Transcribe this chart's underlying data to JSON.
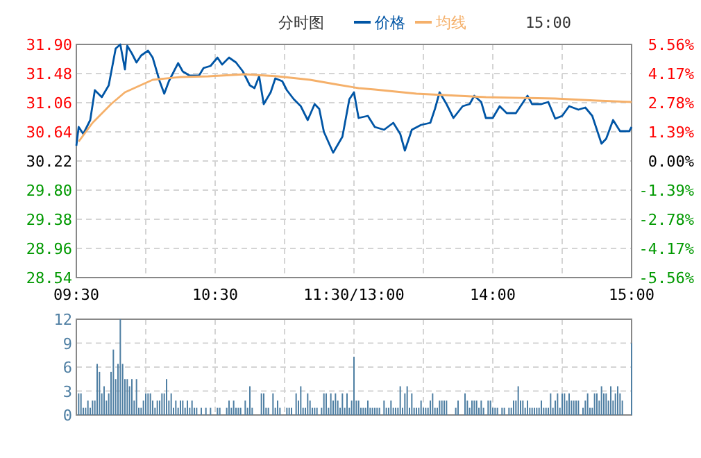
{
  "chart_data": [
    {
      "type": "line",
      "title": "分时图",
      "annotations": [
        "15:00"
      ],
      "legend": "top",
      "grid": true,
      "categories": [
        "09:30",
        null,
        null,
        null,
        null,
        null,
        null,
        null,
        null,
        null,
        null,
        null,
        null,
        null,
        null,
        null,
        null,
        null,
        null,
        null,
        null,
        null,
        null,
        null,
        null,
        null,
        null,
        null,
        null,
        null,
        null,
        null,
        null,
        null,
        null,
        null,
        null,
        null,
        null,
        null,
        null,
        null,
        null,
        null,
        null,
        null,
        null,
        null,
        null,
        null,
        null,
        null,
        null,
        null,
        null,
        null,
        null,
        null,
        null,
        null,
        "10:30",
        null,
        null,
        null,
        null,
        null,
        null,
        null,
        null,
        null,
        null,
        null,
        null,
        null,
        null,
        null,
        null,
        null,
        null,
        null,
        null,
        null,
        null,
        null,
        null,
        null,
        null,
        null,
        null,
        null,
        null,
        null,
        null,
        null,
        null,
        null,
        null,
        null,
        null,
        null,
        null,
        null,
        null,
        null,
        null,
        null,
        null,
        null,
        null,
        null,
        null,
        null,
        null,
        null,
        null,
        null,
        null,
        null,
        null,
        null,
        "11:30/13:00",
        null,
        null,
        null,
        null,
        null,
        null,
        null,
        null,
        null,
        null,
        null,
        null,
        null,
        null,
        null,
        null,
        null,
        null,
        null,
        null,
        null,
        null,
        null,
        null,
        null,
        null,
        null,
        null,
        null,
        null,
        null,
        null,
        null,
        null,
        null,
        null,
        null,
        null,
        null,
        null,
        null,
        null,
        null,
        null,
        null,
        null,
        null,
        null,
        null,
        null,
        null,
        null,
        null,
        null,
        null,
        null,
        null,
        null,
        null,
        "14:00",
        null,
        null,
        null,
        null,
        null,
        null,
        null,
        null,
        null,
        null,
        null,
        null,
        null,
        null,
        null,
        null,
        null,
        null,
        null,
        null,
        null,
        null,
        null,
        null,
        null,
        null,
        null,
        null,
        null,
        null,
        null,
        null,
        null,
        null,
        null,
        null,
        null,
        null,
        null,
        null,
        null,
        null,
        null,
        null,
        null,
        null,
        null,
        null,
        null,
        null,
        null,
        null,
        null,
        null,
        null,
        null,
        null,
        null,
        null,
        "15:00"
      ],
      "ylim": [
        28.54,
        31.9
      ],
      "yticks": [
        {
          "value": 28.54,
          "label": "28.54"
        },
        {
          "value": 28.96,
          "label": "28.96"
        },
        {
          "value": 29.38,
          "label": "29.38"
        },
        {
          "value": 29.8,
          "label": "29.80"
        },
        {
          "value": 30.22,
          "label": "30.22"
        },
        {
          "value": 30.64,
          "label": "30.64"
        },
        {
          "value": 31.06,
          "label": "31.06"
        },
        {
          "value": 31.48,
          "label": "31.48"
        },
        {
          "value": 31.9,
          "label": "31.90"
        }
      ],
      "y2lim": [
        -5.56,
        5.56
      ],
      "y2ticks": [
        {
          "value": -5.56,
          "label": "-5.56%"
        },
        {
          "value": -4.17,
          "label": "-4.17%"
        },
        {
          "value": -2.78,
          "label": "-2.78%"
        },
        {
          "value": -1.39,
          "label": "-1.39%"
        },
        {
          "value": 0,
          "label": "0.00%"
        },
        {
          "value": 1.39,
          "label": "1.39%"
        },
        {
          "value": 2.78,
          "label": "2.78%"
        },
        {
          "value": 4.17,
          "label": "4.17%"
        },
        {
          "value": 5.56,
          "label": "5.56%"
        }
      ],
      "series": [
        {
          "name": "价格",
          "color": "#0055a5",
          "values": [
            30.44,
            30.71,
            null,
            30.61,
            null,
            null,
            30.81,
            null,
            31.24,
            null,
            null,
            31.14,
            null,
            null,
            31.31,
            null,
            null,
            31.84,
            null,
            31.9,
            null,
            31.54,
            31.88,
            null,
            31.77,
            null,
            31.64,
            null,
            31.74,
            null,
            null,
            31.81,
            null,
            31.71,
            null,
            null,
            31.37,
            null,
            31.19,
            null,
            31.37,
            null,
            null,
            null,
            31.63,
            null,
            31.51,
            null,
            null,
            31.45,
            null,
            null,
            null,
            31.45,
            null,
            31.56,
            null,
            null,
            31.59,
            null,
            null,
            31.71,
            null,
            31.61,
            null,
            null,
            31.71,
            null,
            null,
            31.64,
            null,
            null,
            31.51,
            null,
            null,
            31.31,
            null,
            31.27,
            null,
            31.44,
            null,
            31.04,
            null,
            null,
            31.21,
            null,
            31.41,
            null,
            null,
            31.37,
            null,
            31.24,
            null,
            null,
            31.11,
            null,
            null,
            31.01,
            null,
            null,
            30.81,
            null,
            null,
            31.04,
            null,
            30.97,
            null,
            30.64,
            null,
            null,
            null,
            30.34,
            null,
            null,
            null,
            30.57,
            null,
            null,
            31.11,
            null,
            31.21,
            null,
            30.84,
            null,
            null,
            null,
            30.87,
            null,
            null,
            30.71,
            null,
            null,
            null,
            30.67,
            null,
            null,
            null,
            30.77,
            null,
            null,
            30.61,
            null,
            30.37,
            null,
            null,
            30.67,
            null,
            null,
            null,
            30.74,
            null,
            null,
            null,
            30.77,
            null,
            30.97,
            null,
            31.21,
            null,
            null,
            31.04,
            null,
            null,
            30.84,
            null,
            null,
            null,
            31.01,
            null,
            null,
            31.04,
            null,
            31.16,
            null,
            null,
            31.07,
            null,
            30.84,
            null,
            null,
            30.84,
            null,
            null,
            31.01,
            null,
            null,
            30.91,
            null,
            null,
            null,
            30.91,
            null,
            null,
            null,
            null,
            31.16,
            null,
            31.04,
            null,
            null,
            null,
            31.04,
            null,
            null,
            31.07,
            null,
            null,
            30.83,
            null,
            null,
            30.87,
            null,
            null,
            31.01,
            null,
            null,
            null,
            30.96,
            null,
            null,
            30.99,
            null,
            null,
            30.87,
            null,
            null,
            null,
            30.47,
            null,
            30.54,
            null,
            null,
            30.81,
            null,
            null,
            30.65,
            null,
            null,
            null,
            30.65,
            30.71
          ]
        },
        {
          "name": "均线",
          "color": "#f5b06a",
          "values": [
            null,
            30.5,
            null,
            null,
            null,
            null,
            null,
            30.77,
            null,
            null,
            null,
            null,
            null,
            null,
            null,
            31.04,
            null,
            null,
            null,
            null,
            null,
            31.21,
            null,
            null,
            null,
            null,
            null,
            null,
            null,
            null,
            null,
            null,
            null,
            31.39,
            null,
            null,
            null,
            null,
            null,
            null,
            null,
            null,
            null,
            null,
            null,
            31.43,
            null,
            null,
            null,
            null,
            null,
            null,
            null,
            null,
            null,
            null,
            null,
            31.44,
            null,
            null,
            null,
            null,
            null,
            null,
            null,
            null,
            null,
            null,
            null,
            null,
            null,
            null,
            null,
            31.47,
            null,
            null,
            null,
            null,
            null,
            null,
            null,
            null,
            null,
            null,
            null,
            null,
            null,
            31.44,
            null,
            null,
            null,
            null,
            null,
            null,
            null,
            null,
            null,
            null,
            null,
            null,
            null,
            31.39,
            null,
            null,
            null,
            null,
            null,
            null,
            null,
            null,
            null,
            null,
            null,
            31.32,
            null,
            null,
            null,
            null,
            null,
            null,
            null,
            null,
            31.27,
            null,
            null,
            null,
            null,
            null,
            null,
            31.25,
            null,
            null,
            null,
            null,
            null,
            null,
            null,
            null,
            null,
            null,
            null,
            null,
            null,
            null,
            null,
            null,
            null,
            31.19,
            null,
            null,
            null,
            null,
            null,
            null,
            null,
            null,
            null,
            null,
            null,
            null,
            null,
            null,
            null,
            null,
            null,
            null,
            null,
            null,
            null,
            null,
            null,
            null,
            null,
            null,
            null,
            null,
            null,
            31.14,
            null,
            null,
            null,
            null,
            null,
            null,
            null,
            null,
            null,
            null,
            null,
            null,
            null,
            null,
            null,
            null,
            null,
            null,
            null,
            null,
            null,
            null,
            null,
            null,
            null,
            null,
            null,
            null,
            null,
            31.12,
            null,
            null,
            null,
            null,
            null,
            null,
            null,
            null,
            null,
            null,
            null,
            null,
            null,
            null,
            null,
            null,
            null,
            31.09,
            null,
            null,
            null,
            null,
            null,
            null,
            null,
            null,
            null,
            null,
            null,
            null,
            null,
            null,
            31.07
          ]
        }
      ]
    },
    {
      "type": "bar",
      "grid": true,
      "tick_labels": "y",
      "color": "#4f7fa3",
      "categories": [
        null,
        null,
        null,
        null,
        null,
        null,
        null,
        null,
        null,
        null,
        null,
        null,
        null,
        null,
        null,
        null,
        null,
        null,
        null,
        null,
        null,
        null,
        null,
        null,
        null,
        null,
        null,
        null,
        null,
        null,
        null,
        null,
        null,
        null,
        null,
        null,
        null,
        null,
        null,
        null,
        null,
        null,
        null,
        null,
        null,
        null,
        null,
        null,
        null,
        null,
        null,
        null,
        null,
        null,
        null,
        null,
        null,
        null,
        null,
        null,
        null,
        null,
        null,
        null,
        null,
        null,
        null,
        null,
        null,
        null,
        null,
        null,
        null,
        null,
        null,
        null,
        null,
        null,
        null,
        null,
        null,
        null,
        null,
        null,
        null,
        null,
        null,
        null,
        null,
        null,
        null,
        null,
        null,
        null,
        null,
        null,
        null,
        null,
        null,
        null,
        null,
        null,
        null,
        null,
        null,
        null,
        null,
        null,
        null,
        null,
        null,
        null,
        null,
        null,
        null,
        null,
        null,
        null,
        null,
        null,
        null,
        null,
        null,
        null,
        null,
        null,
        null,
        null,
        null,
        null,
        null,
        null,
        null,
        null,
        null,
        null,
        null,
        null,
        null,
        null,
        null,
        null,
        null,
        null,
        null,
        null,
        null,
        null,
        null,
        null,
        null,
        null,
        null,
        null,
        null,
        null,
        null,
        null,
        null,
        null,
        null,
        null,
        null,
        null,
        null,
        null,
        null,
        null,
        null,
        null,
        null,
        null,
        null,
        null,
        null,
        null,
        null,
        null,
        null,
        null,
        null,
        null,
        null,
        null,
        null,
        null,
        null,
        null,
        null,
        null,
        null,
        null,
        null,
        null,
        null,
        null,
        null,
        null,
        null,
        null,
        null,
        null,
        null,
        null,
        null,
        null,
        null,
        null,
        null,
        null,
        null,
        null,
        null,
        null,
        null,
        null,
        null,
        null,
        null,
        null,
        null,
        null,
        null,
        null,
        null,
        null,
        null,
        null,
        null,
        null,
        null,
        null,
        null,
        null,
        null,
        null,
        null,
        null,
        null,
        null,
        null
      ],
      "ylim": [
        0,
        12
      ],
      "yticks": [
        0,
        3,
        6,
        9,
        12
      ],
      "values": [
        null,
        2.7,
        2.7,
        0.9,
        0.9,
        1.8,
        0.9,
        1.8,
        1.8,
        6.4,
        5.4,
        2.7,
        3.6,
        1.8,
        2.7,
        5.4,
        8.2,
        4.5,
        6.4,
        12,
        6.4,
        4.5,
        4.5,
        3.6,
        4.5,
        1.8,
        4.5,
        0.9,
        0.9,
        1.8,
        2.7,
        2.7,
        2.7,
        1.8,
        0.9,
        1.8,
        1.8,
        2.7,
        2.7,
        4.5,
        1.8,
        2.7,
        0.9,
        1.8,
        0.9,
        1.8,
        1.8,
        0.9,
        1.8,
        0.9,
        1.8,
        0.9,
        0.9,
        0,
        0.9,
        0,
        0.9,
        0,
        0.9,
        0,
        0,
        0.9,
        0.9,
        0,
        0,
        0.9,
        1.8,
        0.9,
        1.8,
        0.9,
        0.9,
        0.9,
        0,
        1.8,
        0.9,
        3.6,
        0.9,
        0,
        0,
        0,
        2.7,
        2.7,
        0.9,
        0.9,
        0,
        2.7,
        0.9,
        1.8,
        0.9,
        0,
        0,
        0.9,
        0.9,
        0.9,
        0,
        2.7,
        1.8,
        3.6,
        0.9,
        0.9,
        2.7,
        1.8,
        0.9,
        0.9,
        0.9,
        0,
        0.9,
        2.7,
        2.7,
        0.9,
        2.7,
        1.8,
        2.7,
        1.8,
        0.9,
        2.7,
        0.9,
        2.7,
        0.9,
        1.8,
        7.3,
        1.8,
        1.8,
        0.9,
        0.9,
        0.9,
        1.8,
        0.9,
        0.9,
        0.9,
        0.9,
        0.9,
        0,
        1.8,
        0.9,
        0.9,
        1.8,
        0.9,
        0.9,
        0.9,
        3.6,
        0.9,
        2.7,
        3.6,
        0.9,
        2.7,
        0.9,
        0.9,
        0.9,
        1.8,
        0.9,
        0.9,
        0.9,
        1.8,
        2.7,
        0.9,
        0.9,
        1.8,
        1.8,
        1.8,
        1.8,
        0,
        0,
        0,
        0.9,
        1.8,
        0,
        0,
        2.7,
        1.8,
        0.9,
        1.8,
        1.8,
        1.8,
        0.9,
        1.8,
        0.9,
        0,
        1.8,
        1.8,
        0.9,
        0.9,
        0.9,
        0,
        0.9,
        0.9,
        0,
        0.9,
        0.9,
        1.8,
        1.8,
        3.6,
        1.8,
        1.8,
        0.9,
        1.8,
        0.9,
        0.9,
        0.9,
        0.9,
        0.9,
        1.8,
        0.9,
        0.9,
        0.9,
        2.7,
        0.9,
        1.8,
        2.7,
        0.9,
        2.7,
        2.7,
        1.8,
        2.7,
        1.8,
        1.8,
        1.8,
        1.8,
        0,
        0.9,
        1.8,
        2.7,
        0.9,
        0.9,
        2.7,
        2.7,
        1.8,
        3.6,
        2.7,
        2.7,
        1.8,
        3.6,
        1.8,
        2.7,
        3.6,
        2.7,
        1.8,
        0,
        0,
        0,
        9
      ]
    }
  ]
}
